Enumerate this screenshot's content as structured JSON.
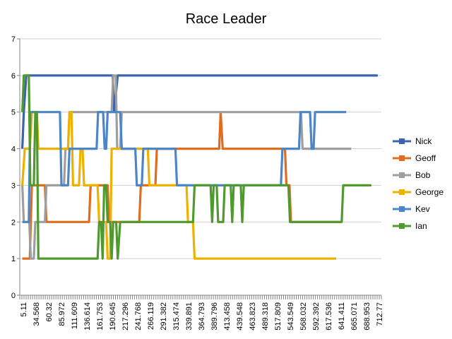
{
  "chart_data": {
    "type": "line",
    "title": "Race Leader",
    "xlabel": "",
    "ylabel": "",
    "ylim": [
      0,
      7
    ],
    "yticks": [
      0,
      1,
      2,
      3,
      4,
      5,
      6,
      7
    ],
    "xlim": [
      0,
      720
    ],
    "x_tick_labels": [
      "5.11",
      "34.568",
      "60.32",
      "85.972",
      "111.609",
      "136.614",
      "161.753",
      "190.645",
      "217.296",
      "241.768",
      "266.119",
      "291.382",
      "315.474",
      "339.891",
      "364.793",
      "389.796",
      "413.458",
      "439.548",
      "463.823",
      "489.318",
      "517.809",
      "543.549",
      "568.032",
      "592.392",
      "617.536",
      "641.411",
      "665.071",
      "688.953",
      "712.77"
    ],
    "grid": "horizontal",
    "legend": "right",
    "series": [
      {
        "name": "Nick",
        "color": "#3B64AD",
        "points": [
          [
            5.11,
            4
          ],
          [
            8,
            5
          ],
          [
            13,
            6
          ],
          [
            185,
            6
          ],
          [
            188,
            5
          ],
          [
            195,
            6
          ],
          [
            712.77,
            6
          ]
        ]
      },
      {
        "name": "Geoff",
        "color": "#E06C1F",
        "points": [
          [
            5.11,
            1
          ],
          [
            20,
            1
          ],
          [
            24,
            3
          ],
          [
            50,
            3
          ],
          [
            53,
            2
          ],
          [
            138,
            2
          ],
          [
            141,
            3
          ],
          [
            175,
            3
          ],
          [
            178,
            2
          ],
          [
            238,
            2
          ],
          [
            241,
            3
          ],
          [
            270,
            3
          ],
          [
            273,
            4
          ],
          [
            397,
            4
          ],
          [
            400,
            5
          ],
          [
            404,
            4
          ],
          [
            528,
            4
          ],
          [
            531,
            3
          ],
          [
            537,
            3
          ],
          [
            540,
            2
          ],
          [
            640,
            2
          ]
        ]
      },
      {
        "name": "Bob",
        "color": "#9E9E9E",
        "points": [
          [
            5.11,
            3
          ],
          [
            8,
            2
          ],
          [
            19,
            2
          ],
          [
            22,
            1
          ],
          [
            28,
            1
          ],
          [
            31,
            2
          ],
          [
            50,
            2
          ],
          [
            53,
            3
          ],
          [
            88,
            3
          ],
          [
            91,
            4
          ],
          [
            96,
            4
          ],
          [
            99,
            5
          ],
          [
            183,
            5
          ],
          [
            186,
            6
          ],
          [
            191,
            6
          ],
          [
            194,
            4
          ],
          [
            200,
            4
          ],
          [
            203,
            5
          ],
          [
            560,
            5
          ],
          [
            563,
            4
          ],
          [
            660,
            4
          ]
        ]
      },
      {
        "name": "George",
        "color": "#EDB100",
        "points": [
          [
            5.11,
            3
          ],
          [
            10,
            4
          ],
          [
            20,
            4
          ],
          [
            24,
            5
          ],
          [
            34,
            5
          ],
          [
            37,
            4
          ],
          [
            96,
            4
          ],
          [
            99,
            5
          ],
          [
            103,
            5
          ],
          [
            106,
            3
          ],
          [
            118,
            3
          ],
          [
            121,
            4
          ],
          [
            125,
            4
          ],
          [
            128,
            3
          ],
          [
            155,
            3
          ],
          [
            158,
            2
          ],
          [
            172,
            2
          ],
          [
            175,
            1
          ],
          [
            180,
            1
          ],
          [
            183,
            4
          ],
          [
            255,
            4
          ],
          [
            258,
            3
          ],
          [
            332,
            3
          ],
          [
            335,
            2
          ],
          [
            345,
            2
          ],
          [
            348,
            1
          ],
          [
            630,
            1
          ]
        ]
      },
      {
        "name": "Kev",
        "color": "#4A86C8",
        "points": [
          [
            5.11,
            2
          ],
          [
            18,
            2
          ],
          [
            21,
            5
          ],
          [
            80,
            5
          ],
          [
            83,
            3
          ],
          [
            96,
            3
          ],
          [
            99,
            4
          ],
          [
            153,
            4
          ],
          [
            156,
            5
          ],
          [
            166,
            5
          ],
          [
            169,
            4
          ],
          [
            172,
            4
          ],
          [
            175,
            5
          ],
          [
            200,
            5
          ],
          [
            203,
            4
          ],
          [
            230,
            4
          ],
          [
            233,
            3
          ],
          [
            243,
            3
          ],
          [
            246,
            4
          ],
          [
            310,
            4
          ],
          [
            313,
            3
          ],
          [
            520,
            3
          ],
          [
            523,
            4
          ],
          [
            556,
            4
          ],
          [
            559,
            5
          ],
          [
            578,
            5
          ],
          [
            581,
            4
          ],
          [
            585,
            4
          ],
          [
            588,
            5
          ],
          [
            650,
            5
          ]
        ]
      },
      {
        "name": "Ian",
        "color": "#4E9A2E",
        "points": [
          [
            5.11,
            5
          ],
          [
            8,
            6
          ],
          [
            18,
            6
          ],
          [
            21,
            3
          ],
          [
            28,
            3
          ],
          [
            31,
            5
          ],
          [
            34,
            5
          ],
          [
            37,
            1
          ],
          [
            155,
            1
          ],
          [
            158,
            2
          ],
          [
            162,
            2
          ],
          [
            165,
            1
          ],
          [
            168,
            3
          ],
          [
            172,
            3
          ],
          [
            175,
            2
          ],
          [
            180,
            2
          ],
          [
            183,
            1
          ],
          [
            186,
            2
          ],
          [
            192,
            2
          ],
          [
            195,
            1
          ],
          [
            200,
            2
          ],
          [
            345,
            2
          ],
          [
            348,
            3
          ],
          [
            380,
            3
          ],
          [
            383,
            2
          ],
          [
            386,
            3
          ],
          [
            392,
            3
          ],
          [
            395,
            2
          ],
          [
            405,
            2
          ],
          [
            408,
            3
          ],
          [
            420,
            3
          ],
          [
            423,
            2
          ],
          [
            426,
            3
          ],
          [
            440,
            3
          ],
          [
            443,
            2
          ],
          [
            446,
            3
          ],
          [
            535,
            3
          ],
          [
            538,
            2
          ],
          [
            641,
            2
          ],
          [
            644,
            3
          ],
          [
            700,
            3
          ]
        ]
      }
    ]
  }
}
